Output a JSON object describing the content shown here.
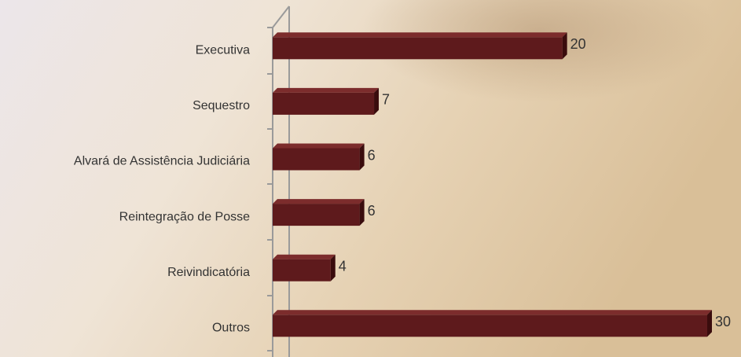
{
  "chart_data": {
    "type": "bar",
    "orientation": "horizontal",
    "categories": [
      "Executiva",
      "Sequestro",
      "Alvará de Assistência Judiciária",
      "Reintegração de Posse",
      "Reivindicatória",
      "Outros"
    ],
    "values": [
      20,
      7,
      6,
      6,
      4,
      30
    ],
    "color": "#5e1a1c"
  }
}
